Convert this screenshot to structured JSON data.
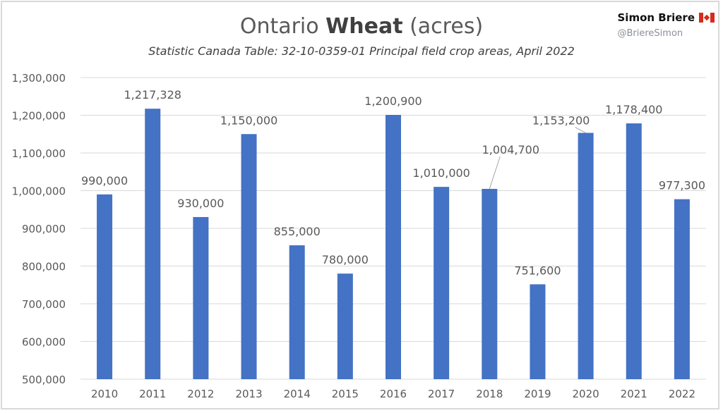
{
  "chart_data": {
    "type": "bar",
    "title_prefix": "Ontario ",
    "title_bold": "Wheat",
    "title_suffix": " (acres)",
    "subtitle": "Statistic Canada Table: 32-10-0359-01 Principal field crop areas, April 2022",
    "categories": [
      "2010",
      "2011",
      "2012",
      "2013",
      "2014",
      "2015",
      "2016",
      "2017",
      "2018",
      "2019",
      "2020",
      "2021",
      "2022"
    ],
    "values": [
      990000,
      1217328,
      930000,
      1150000,
      855000,
      780000,
      1200900,
      1010000,
      1004700,
      751600,
      1153200,
      1178400,
      977300
    ],
    "data_labels": [
      "990,000",
      "1,217,328",
      "930,000",
      "1,150,000",
      "855,000",
      "780,000",
      "1,200,900",
      "1,010,000",
      "1,004,700",
      "751,600",
      "1,153,200",
      "1,178,400",
      "977,300"
    ],
    "ylim": [
      500000,
      1300000
    ],
    "yticks": [
      500000,
      600000,
      700000,
      800000,
      900000,
      1000000,
      1100000,
      1200000,
      1300000
    ],
    "ytick_labels": [
      "500,000",
      "600,000",
      "700,000",
      "800,000",
      "900,000",
      "1,000,000",
      "1,100,000",
      "1,200,000",
      "1,300,000"
    ],
    "xlabel": "",
    "ylabel": "",
    "grid": true,
    "bar_color": "#4472c4"
  },
  "brand": {
    "name": "Simon Briere",
    "handle": "@BriereSimon",
    "flag_icon": "canada-flag-icon"
  }
}
